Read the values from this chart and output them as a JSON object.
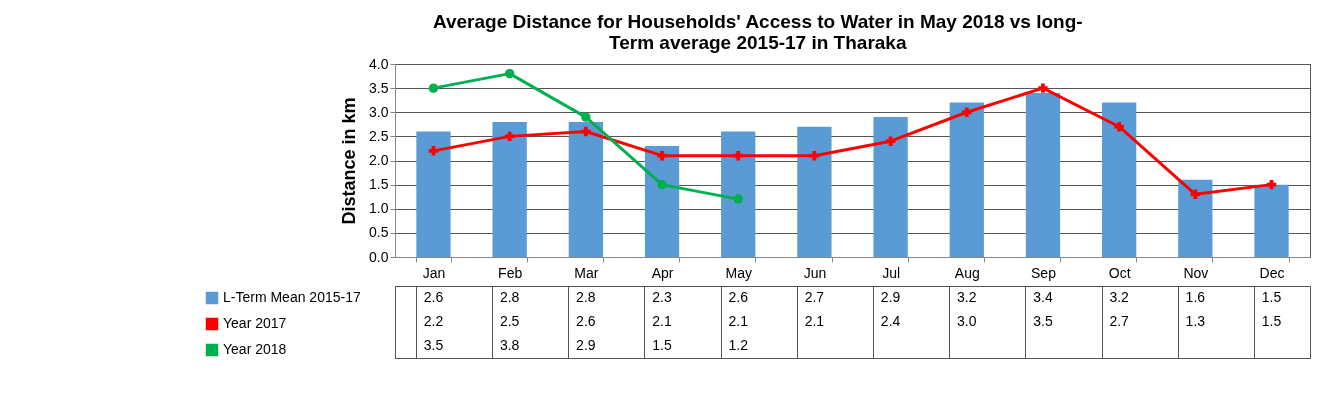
{
  "chart_data": {
    "type": "bar",
    "title": "Average Distance for Households' Access to Water in May 2018 vs long-Term average 2015-17 in Tharaka",
    "ylabel": "Distance in km",
    "categories": [
      "Jan",
      "Feb",
      "Mar",
      "Apr",
      "May",
      "Jun",
      "Jul",
      "Aug",
      "Sep",
      "Oct",
      "Nov",
      "Dec"
    ],
    "series": [
      {
        "name": "L-Term Mean 2015-17",
        "color": "#5b9bd5",
        "values": [
          2.6,
          2.8,
          2.8,
          2.3,
          2.6,
          2.7,
          2.9,
          3.2,
          3.4,
          3.2,
          1.6,
          1.5
        ],
        "value_labels": [
          "2.6",
          "2.8",
          "2.8",
          "2.3",
          "2.6",
          "2.7",
          "2.9",
          "3.2",
          "3.4",
          "3.2",
          "1.6",
          "1.5"
        ]
      },
      {
        "name": "Year 2017",
        "type": "line",
        "marker": "cross",
        "color": "#ff0000",
        "values": [
          2.2,
          2.5,
          2.6,
          2.1,
          2.1,
          2.1,
          2.4,
          3.0,
          3.5,
          2.7,
          1.3,
          1.5
        ],
        "value_labels": [
          "2.2",
          "2.5",
          "2.6",
          "2.1",
          "2.1",
          "2.1",
          "2.4",
          "3.0",
          "3.5",
          "2.7",
          "1.3",
          "1.5"
        ]
      },
      {
        "name": "Year 2018",
        "type": "line",
        "marker": "circle",
        "color": "#00b050",
        "values": [
          3.5,
          3.8,
          2.9,
          1.5,
          1.2,
          null,
          null,
          null,
          null,
          null,
          null,
          null
        ],
        "value_labels": [
          "3.5",
          "3.8",
          "2.9",
          "1.5",
          "1.2",
          null,
          null,
          null,
          null,
          null,
          null,
          null
        ]
      }
    ],
    "ylim": [
      0,
      4
    ],
    "yticks": [
      {
        "value": 0,
        "label": "0.0"
      },
      {
        "value": 0.5,
        "label": "0.5"
      },
      {
        "value": 1,
        "label": "1.0"
      },
      {
        "value": 1.5,
        "label": "1.5"
      },
      {
        "value": 2,
        "label": "2.0"
      },
      {
        "value": 2.5,
        "label": "2.5"
      },
      {
        "value": 3,
        "label": "3.0"
      },
      {
        "value": 3.5,
        "label": "3.5"
      },
      {
        "value": 4,
        "label": "4.0"
      }
    ],
    "grid": "y",
    "legend": "bottom left"
  }
}
